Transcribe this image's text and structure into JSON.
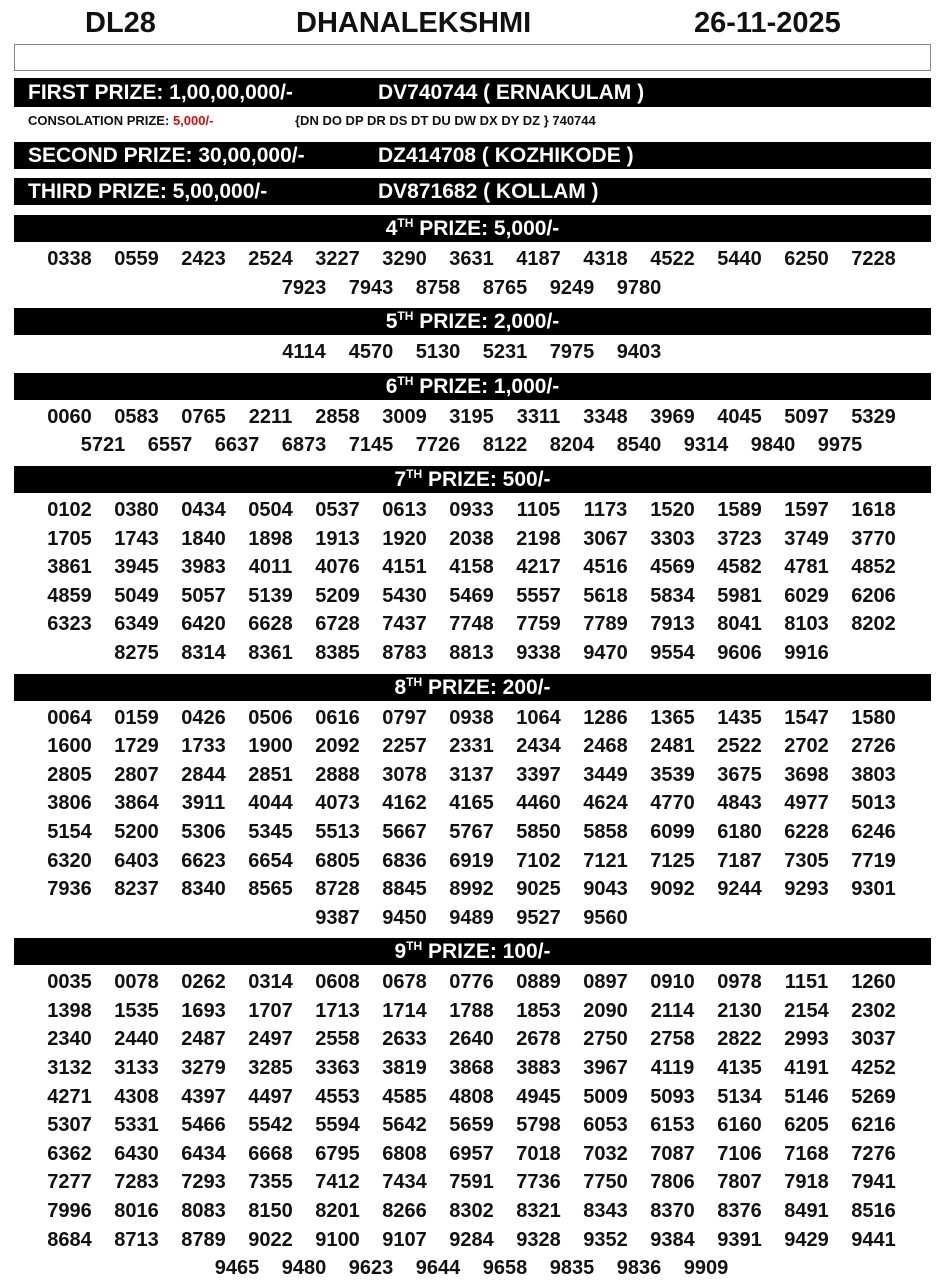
{
  "header": {
    "code": "DL28",
    "name": "DHANALEKSHMI",
    "date": "26-11-2025"
  },
  "top_prizes": [
    {
      "label": "FIRST PRIZE: 1,00,00,000/-",
      "ticket": "DV740744 ( ERNAKULAM )"
    },
    {
      "label": "SECOND PRIZE: 30,00,000/-",
      "ticket": "DZ414708 ( KOZHIKODE )"
    },
    {
      "label": "THIRD PRIZE: 5,00,000/-",
      "ticket": "DV871682 ( KOLLAM )"
    }
  ],
  "consolation": {
    "label": "CONSOLATION PRIZE:",
    "amount": "5,000/-",
    "series": "{DN DO DP DR DS DT DU DW DX DY DZ } 740744"
  },
  "prizes": [
    {
      "ordinal": "4",
      "suffix": "TH",
      "label": "PRIZE: 5,000/-",
      "numbers": [
        "0338",
        "0559",
        "2423",
        "2524",
        "3227",
        "3290",
        "3631",
        "4187",
        "4318",
        "4522",
        "5440",
        "6250",
        "7228",
        "7923",
        "7943",
        "8758",
        "8765",
        "9249",
        "9780"
      ]
    },
    {
      "ordinal": "5",
      "suffix": "TH",
      "label": "PRIZE: 2,000/-",
      "numbers": [
        "4114",
        "4570",
        "5130",
        "5231",
        "7975",
        "9403"
      ]
    },
    {
      "ordinal": "6",
      "suffix": "TH",
      "label": "PRIZE: 1,000/-",
      "numbers": [
        "0060",
        "0583",
        "0765",
        "2211",
        "2858",
        "3009",
        "3195",
        "3311",
        "3348",
        "3969",
        "4045",
        "5097",
        "5329",
        "5721",
        "6557",
        "6637",
        "6873",
        "7145",
        "7726",
        "8122",
        "8204",
        "8540",
        "9314",
        "9840",
        "9975"
      ]
    },
    {
      "ordinal": "7",
      "suffix": "TH",
      "label": "PRIZE: 500/-",
      "numbers": [
        "0102",
        "0380",
        "0434",
        "0504",
        "0537",
        "0613",
        "0933",
        "1105",
        "1173",
        "1520",
        "1589",
        "1597",
        "1618",
        "1705",
        "1743",
        "1840",
        "1898",
        "1913",
        "1920",
        "2038",
        "2198",
        "3067",
        "3303",
        "3723",
        "3749",
        "3770",
        "3861",
        "3945",
        "3983",
        "4011",
        "4076",
        "4151",
        "4158",
        "4217",
        "4516",
        "4569",
        "4582",
        "4781",
        "4852",
        "4859",
        "5049",
        "5057",
        "5139",
        "5209",
        "5430",
        "5469",
        "5557",
        "5618",
        "5834",
        "5981",
        "6029",
        "6206",
        "6323",
        "6349",
        "6420",
        "6628",
        "6728",
        "7437",
        "7748",
        "7759",
        "7789",
        "7913",
        "8041",
        "8103",
        "8202",
        "8275",
        "8314",
        "8361",
        "8385",
        "8783",
        "8813",
        "9338",
        "9470",
        "9554",
        "9606",
        "9916"
      ]
    },
    {
      "ordinal": "8",
      "suffix": "TH",
      "label": "PRIZE: 200/-",
      "numbers": [
        "0064",
        "0159",
        "0426",
        "0506",
        "0616",
        "0797",
        "0938",
        "1064",
        "1286",
        "1365",
        "1435",
        "1547",
        "1580",
        "1600",
        "1729",
        "1733",
        "1900",
        "2092",
        "2257",
        "2331",
        "2434",
        "2468",
        "2481",
        "2522",
        "2702",
        "2726",
        "2805",
        "2807",
        "2844",
        "2851",
        "2888",
        "3078",
        "3137",
        "3397",
        "3449",
        "3539",
        "3675",
        "3698",
        "3803",
        "3806",
        "3864",
        "3911",
        "4044",
        "4073",
        "4162",
        "4165",
        "4460",
        "4624",
        "4770",
        "4843",
        "4977",
        "5013",
        "5154",
        "5200",
        "5306",
        "5345",
        "5513",
        "5667",
        "5767",
        "5850",
        "5858",
        "6099",
        "6180",
        "6228",
        "6246",
        "6320",
        "6403",
        "6623",
        "6654",
        "6805",
        "6836",
        "6919",
        "7102",
        "7121",
        "7125",
        "7187",
        "7305",
        "7719",
        "7936",
        "8237",
        "8340",
        "8565",
        "8728",
        "8845",
        "8992",
        "9025",
        "9043",
        "9092",
        "9244",
        "9293",
        "9301",
        "9387",
        "9450",
        "9489",
        "9527",
        "9560"
      ]
    },
    {
      "ordinal": "9",
      "suffix": "TH",
      "label": "PRIZE: 100/-",
      "numbers": [
        "0035",
        "0078",
        "0262",
        "0314",
        "0608",
        "0678",
        "0776",
        "0889",
        "0897",
        "0910",
        "0978",
        "1151",
        "1260",
        "1398",
        "1535",
        "1693",
        "1707",
        "1713",
        "1714",
        "1788",
        "1853",
        "2090",
        "2114",
        "2130",
        "2154",
        "2302",
        "2340",
        "2440",
        "2487",
        "2497",
        "2558",
        "2633",
        "2640",
        "2678",
        "2750",
        "2758",
        "2822",
        "2993",
        "3037",
        "3132",
        "3133",
        "3279",
        "3285",
        "3363",
        "3819",
        "3868",
        "3883",
        "3967",
        "4119",
        "4135",
        "4191",
        "4252",
        "4271",
        "4308",
        "4397",
        "4497",
        "4553",
        "4585",
        "4808",
        "4945",
        "5009",
        "5093",
        "5134",
        "5146",
        "5269",
        "5307",
        "5331",
        "5466",
        "5542",
        "5594",
        "5642",
        "5659",
        "5798",
        "6053",
        "6153",
        "6160",
        "6205",
        "6216",
        "6362",
        "6430",
        "6434",
        "6668",
        "6795",
        "6808",
        "6957",
        "7018",
        "7032",
        "7087",
        "7106",
        "7168",
        "7276",
        "7277",
        "7283",
        "7293",
        "7355",
        "7412",
        "7434",
        "7591",
        "7736",
        "7750",
        "7806",
        "7807",
        "7918",
        "7941",
        "7996",
        "8016",
        "8083",
        "8150",
        "8201",
        "8266",
        "8302",
        "8321",
        "8343",
        "8370",
        "8376",
        "8491",
        "8516",
        "8684",
        "8713",
        "8789",
        "9022",
        "9100",
        "9107",
        "9284",
        "9328",
        "9352",
        "9384",
        "9391",
        "9429",
        "9441",
        "9465",
        "9480",
        "9623",
        "9644",
        "9658",
        "9835",
        "9836",
        "9909"
      ]
    }
  ]
}
